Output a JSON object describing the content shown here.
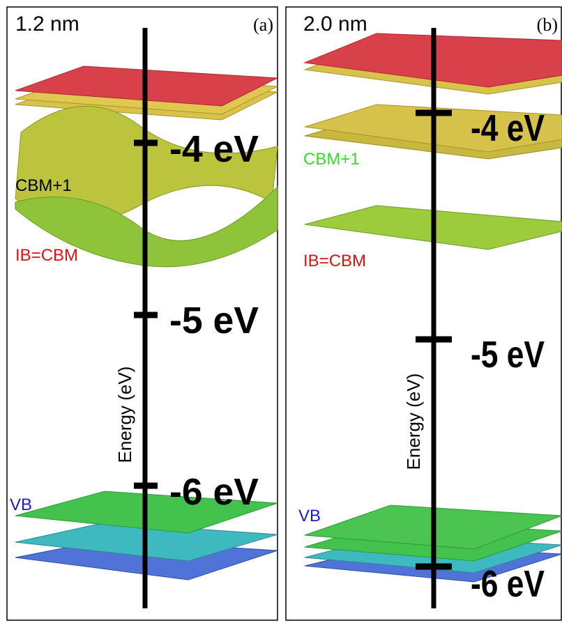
{
  "panels": [
    {
      "size": "1.2 nm",
      "letter": "(a)",
      "axis_label": "Energy (eV)",
      "ticks": [
        "-4 eV",
        "-5 eV",
        "-6 eV"
      ],
      "bands": [
        "CBM+1",
        "IB=CBM",
        "VB"
      ]
    },
    {
      "size": "2.0 nm",
      "letter": "(b)",
      "axis_label": "Energy (eV)",
      "ticks": [
        "-4 eV",
        "-5 eV",
        "-6 eV"
      ],
      "bands": [
        "CBM+1",
        "IB=CBM",
        "VB"
      ]
    }
  ]
}
